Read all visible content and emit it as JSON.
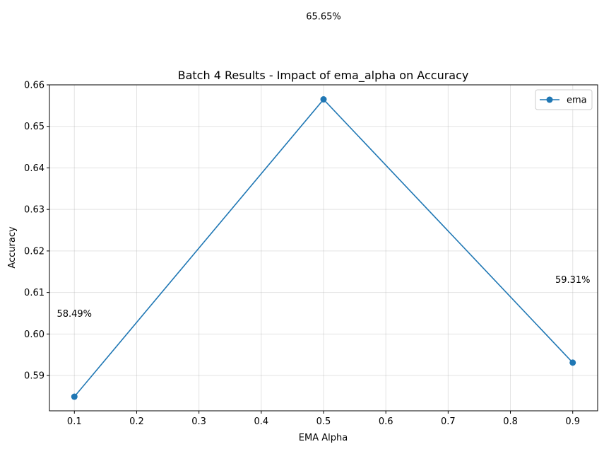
{
  "chart_data": {
    "type": "line",
    "title": "Batch 4 Results - Impact of ema_alpha on Accuracy",
    "xlabel": "EMA Alpha",
    "ylabel": "Accuracy",
    "xlim": [
      0.06,
      0.94
    ],
    "ylim": [
      0.5815,
      0.66
    ],
    "xticks": [
      0.1,
      0.2,
      0.3,
      0.4,
      0.5,
      0.6,
      0.7,
      0.8,
      0.9
    ],
    "xtick_labels": [
      "0.1",
      "0.2",
      "0.3",
      "0.4",
      "0.5",
      "0.6",
      "0.7",
      "0.8",
      "0.9"
    ],
    "yticks": [
      0.59,
      0.6,
      0.61,
      0.62,
      0.63,
      0.64,
      0.65,
      0.66
    ],
    "ytick_labels": [
      "0.59",
      "0.60",
      "0.61",
      "0.62",
      "0.63",
      "0.64",
      "0.65",
      "0.66"
    ],
    "grid": true,
    "legend_position": "top-right",
    "series": [
      {
        "name": "ema",
        "color": "#1f77b4",
        "marker": "circle",
        "x": [
          0.1,
          0.5,
          0.9
        ],
        "y": [
          0.5849,
          0.6565,
          0.5931
        ]
      }
    ],
    "annotations": [
      {
        "text": "58.49%",
        "x": 0.1,
        "y": 0.6049
      },
      {
        "text": "65.65%",
        "x": 0.5,
        "y": 0.6765
      },
      {
        "text": "59.31%",
        "x": 0.9,
        "y": 0.6131
      }
    ]
  }
}
